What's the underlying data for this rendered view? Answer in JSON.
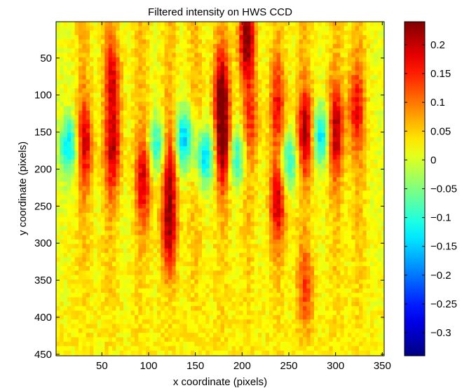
{
  "chart_data": {
    "type": "heatmap",
    "title": "Filtered intensity on HWS CCD",
    "xlabel": "x coordinate (pixels)",
    "ylabel": "y coordinate (pixels)",
    "xlim": [
      1,
      352
    ],
    "ylim": [
      1,
      452
    ],
    "y_reversed": true,
    "x_ticks": [
      50,
      100,
      150,
      200,
      250,
      300,
      350
    ],
    "y_ticks": [
      50,
      100,
      150,
      200,
      250,
      300,
      350,
      400,
      450
    ],
    "colormap": "jet",
    "clim": [
      -0.34,
      0.24
    ],
    "colorbar_ticks": [
      0.2,
      0.15,
      0.1,
      0.05,
      0,
      -0.05,
      -0.1,
      -0.15,
      -0.2,
      -0.25,
      -0.3
    ],
    "colorbar_tick_labels": [
      "0.2",
      "0.15",
      "0.1",
      "0.05",
      "0",
      "−0.05",
      "−0.1",
      "−0.15",
      "−0.2",
      "−0.25",
      "−0.3"
    ],
    "grid": false,
    "pattern": {
      "description_vertical_fringes": true,
      "fringe_centers_x": [
        30,
        58,
        92,
        122,
        150,
        178,
        206,
        238,
        266,
        300,
        325
      ],
      "warm_peaks": [
        {
          "x": 205,
          "y": 25,
          "value": 0.22
        },
        {
          "x": 180,
          "y": 170,
          "value": 0.21
        },
        {
          "x": 178,
          "y": 95,
          "value": 0.2
        },
        {
          "x": 122,
          "y": 280,
          "value": 0.19
        },
        {
          "x": 122,
          "y": 195,
          "value": 0.16
        },
        {
          "x": 95,
          "y": 215,
          "value": 0.17
        },
        {
          "x": 62,
          "y": 80,
          "value": 0.16
        },
        {
          "x": 62,
          "y": 175,
          "value": 0.18
        },
        {
          "x": 32,
          "y": 165,
          "value": 0.17
        },
        {
          "x": 238,
          "y": 245,
          "value": 0.17
        },
        {
          "x": 268,
          "y": 150,
          "value": 0.2
        },
        {
          "x": 300,
          "y": 150,
          "value": 0.2
        },
        {
          "x": 322,
          "y": 120,
          "value": 0.15
        },
        {
          "x": 238,
          "y": 115,
          "value": 0.14
        },
        {
          "x": 268,
          "y": 360,
          "value": 0.12
        },
        {
          "x": 210,
          "y": 140,
          "value": 0.12
        }
      ],
      "cool_peaks": [
        {
          "x": 138,
          "y": 160,
          "value": -0.15
        },
        {
          "x": 160,
          "y": 185,
          "value": -0.13
        },
        {
          "x": 15,
          "y": 170,
          "value": -0.12
        },
        {
          "x": 285,
          "y": 155,
          "value": -0.13
        },
        {
          "x": 195,
          "y": 185,
          "value": -0.1
        },
        {
          "x": 250,
          "y": 190,
          "value": -0.1
        },
        {
          "x": 110,
          "y": 170,
          "value": -0.11
        }
      ]
    }
  }
}
